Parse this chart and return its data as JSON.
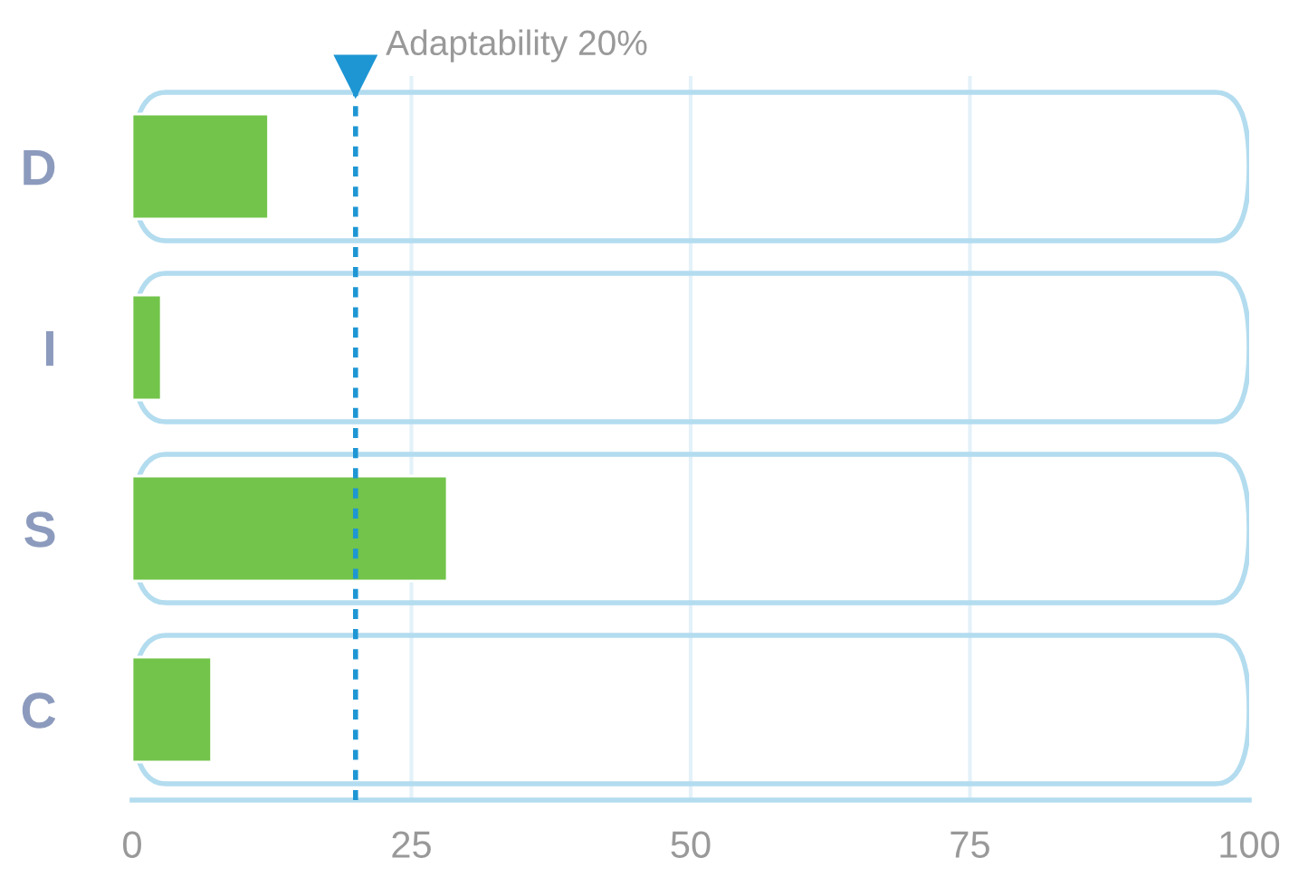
{
  "chart_data": {
    "type": "bar",
    "orientation": "horizontal",
    "categories": [
      "D",
      "I",
      "S",
      "C"
    ],
    "series": [
      {
        "color": "#b3dcef",
        "values": [
          100,
          100,
          100,
          100
        ]
      },
      {
        "color": "#72c44a",
        "values": [
          12.2,
          2.6,
          28.2,
          7.1
        ]
      }
    ],
    "xlim": [
      0,
      100
    ],
    "xticks": [
      0,
      25,
      50,
      75,
      100
    ],
    "grid": "x",
    "ref_lines": [
      {
        "axis": "x",
        "value": 20,
        "label": "Adaptability 20%",
        "color": "#1e96d4",
        "line_style": "dotted"
      }
    ]
  }
}
